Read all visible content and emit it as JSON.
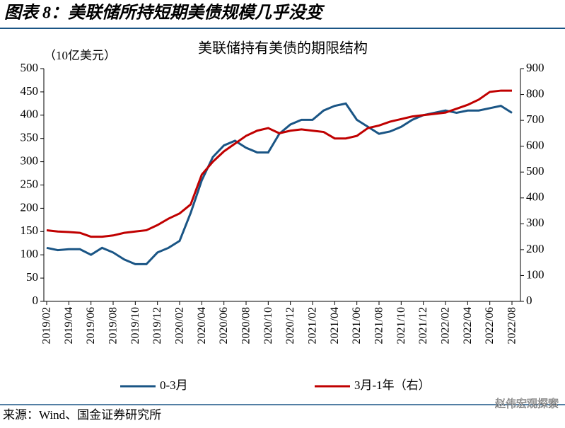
{
  "header": {
    "title": "图表 8：美联储所持短期美债规模几乎没变"
  },
  "chart_data": {
    "type": "line",
    "title": "美联储持有美债的期限结构",
    "y_label": "（10亿美元）",
    "categories": [
      "2019/02",
      null,
      "2019/04",
      null,
      "2019/06",
      null,
      "2019/08",
      null,
      "2019/10",
      null,
      "2019/12",
      null,
      "2020/02",
      null,
      "2020/04",
      null,
      "2020/06",
      null,
      "2020/08",
      null,
      "2020/10",
      null,
      "2020/12",
      null,
      "2021/02",
      null,
      "2021/04",
      null,
      "2021/06",
      null,
      "2021/08",
      null,
      "2021/10",
      null,
      "2021/12",
      null,
      "2022/02",
      null,
      "2022/04",
      null,
      "2022/06",
      null,
      "2022/08"
    ],
    "series": [
      {
        "name": "0-3月",
        "color": "#1a5585",
        "values": [
          115,
          110,
          112,
          112,
          100,
          115,
          105,
          90,
          80,
          80,
          105,
          115,
          130,
          190,
          260,
          310,
          335,
          345,
          330,
          320,
          320,
          360,
          380,
          390,
          390,
          410,
          420,
          425,
          390,
          375,
          360,
          365,
          375,
          390,
          400,
          405,
          410,
          405,
          410,
          410,
          415,
          420,
          405
        ]
      },
      {
        "name": "3月-1年（右）",
        "color": "#c00000",
        "axis": "y2",
        "values": [
          275,
          270,
          268,
          265,
          250,
          250,
          255,
          265,
          270,
          275,
          295,
          320,
          340,
          375,
          490,
          540,
          580,
          610,
          640,
          660,
          670,
          650,
          660,
          665,
          660,
          655,
          630,
          630,
          640,
          670,
          680,
          695,
          705,
          715,
          720,
          725,
          730,
          745,
          760,
          780,
          810,
          815,
          815
        ]
      }
    ],
    "ylim": [
      0,
      500
    ],
    "yticks": [
      0,
      50,
      100,
      150,
      200,
      250,
      300,
      350,
      400,
      450,
      500
    ],
    "y2lim": [
      0,
      900
    ],
    "y2ticks": [
      0,
      100,
      200,
      300,
      400,
      500,
      600,
      700,
      800,
      900
    ],
    "legend": "bottom"
  },
  "footer": {
    "source": "来源：Wind、国金证券研究所",
    "watermark": "赵伟宏观探索"
  }
}
